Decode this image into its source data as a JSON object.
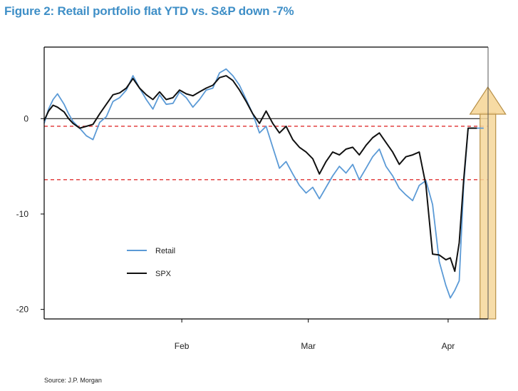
{
  "figure": {
    "title": "Figure 2: Retail portfolio flat YTD vs. S&P down -7%",
    "title_color": "#3f8fc7",
    "source": "Source: J.P. Morgan"
  },
  "chart_data": {
    "type": "line",
    "title": "Figure 2: Retail portfolio flat YTD vs. S&P down -7%",
    "xlabel": "",
    "ylabel": "",
    "xlim": [
      0,
      100
    ],
    "ylim": [
      -21,
      7.5
    ],
    "x_ticks": [
      {
        "x": 31.0,
        "label": "Feb"
      },
      {
        "x": 59.5,
        "label": "Mar"
      },
      {
        "x": 91.0,
        "label": "Apr"
      }
    ],
    "y_ticks": [
      {
        "y": 0,
        "label": "0"
      },
      {
        "y": -10,
        "label": "-10"
      },
      {
        "y": -20,
        "label": "-20"
      }
    ],
    "zero_line": 0,
    "reference_lines": [
      {
        "y": -0.8,
        "color": "#e03030",
        "style": "dashed"
      },
      {
        "y": -6.4,
        "color": "#e03030",
        "style": "dashed"
      }
    ],
    "highlight": {
      "x_start": 98.3,
      "x_end": 100,
      "description": "upward arrow",
      "color": "#f6d79a",
      "border": "#b89048"
    },
    "legend": {
      "placement": "bottom-left",
      "entries": [
        "Retail",
        "SPX"
      ]
    },
    "series": [
      {
        "name": "Retail",
        "color": "#5b9ad6",
        "x": [
          0,
          1,
          2,
          3,
          4.5,
          5.5,
          6.5,
          8,
          9.5,
          11,
          12.5,
          14,
          15.5,
          17,
          18.5,
          20,
          21.5,
          23,
          24.5,
          26,
          27.5,
          29,
          30.5,
          32,
          33.5,
          35,
          36.5,
          38,
          39.5,
          41,
          42.5,
          44,
          45.5,
          47,
          48.5,
          50,
          51.5,
          53,
          54.5,
          56,
          57.5,
          59,
          60.5,
          62,
          63.5,
          65,
          66.5,
          68,
          69.5,
          71,
          72.5,
          74,
          75.5,
          77,
          78.5,
          80,
          81.5,
          83,
          84.5,
          86,
          87.5,
          89,
          90.5,
          91.5,
          92.5,
          93.5,
          94.5,
          95.5,
          96.5,
          97.5,
          98,
          98.5,
          99
        ],
        "values": [
          -0.5,
          1.0,
          2.0,
          2.6,
          1.5,
          0.5,
          -0.3,
          -1.0,
          -1.8,
          -2.2,
          -0.4,
          0.2,
          1.8,
          2.2,
          3.0,
          4.5,
          3.2,
          2.0,
          1.0,
          2.5,
          1.5,
          1.6,
          2.8,
          2.2,
          1.2,
          2.0,
          3.0,
          3.2,
          4.8,
          5.2,
          4.5,
          3.5,
          2.0,
          0.5,
          -1.5,
          -0.8,
          -3.0,
          -5.2,
          -4.5,
          -5.8,
          -7.0,
          -7.8,
          -7.2,
          -8.4,
          -7.2,
          -6.0,
          -5.0,
          -5.7,
          -4.8,
          -6.4,
          -5.2,
          -4.0,
          -3.2,
          -5.0,
          -6.0,
          -7.3,
          -8.0,
          -8.6,
          -7.0,
          -6.5,
          -9.0,
          -15.0,
          -17.5,
          -18.8,
          -18.0,
          -17.0,
          -7.0,
          -1.0,
          -1.0,
          -1.0,
          -1.0,
          -1.0,
          -1.0
        ]
      },
      {
        "name": "SPX",
        "color": "#111111",
        "x": [
          0,
          1,
          2,
          3,
          4.5,
          5.5,
          6.5,
          8,
          9.5,
          11,
          12.5,
          14,
          15.5,
          17,
          18.5,
          20,
          21.5,
          23,
          24.5,
          26,
          27.5,
          29,
          30.5,
          32,
          33.5,
          35,
          36.5,
          38,
          39.5,
          41,
          42.5,
          44,
          45.5,
          47,
          48.5,
          50,
          51.5,
          53,
          54.5,
          56,
          57.5,
          59,
          60.5,
          62,
          63.5,
          65,
          66.5,
          68,
          69.5,
          71,
          72.5,
          74,
          75.5,
          77,
          78.5,
          80,
          81.5,
          83,
          84.5,
          86,
          87.5,
          89,
          90.5,
          91.5,
          92.5,
          93.5,
          94.5,
          95.5,
          96.5,
          97.5
        ],
        "values": [
          -0.2,
          0.8,
          1.4,
          1.2,
          0.7,
          0.0,
          -0.5,
          -1.0,
          -0.8,
          -0.6,
          0.5,
          1.5,
          2.5,
          2.7,
          3.2,
          4.2,
          3.2,
          2.5,
          2.0,
          2.8,
          2.0,
          2.2,
          3.0,
          2.6,
          2.4,
          2.8,
          3.2,
          3.5,
          4.3,
          4.5,
          4.0,
          3.0,
          1.8,
          0.5,
          -0.5,
          0.8,
          -0.5,
          -1.5,
          -0.8,
          -2.2,
          -3.0,
          -3.5,
          -4.2,
          -5.8,
          -4.5,
          -3.5,
          -3.8,
          -3.2,
          -3.0,
          -3.8,
          -2.8,
          -2.0,
          -1.5,
          -2.5,
          -3.5,
          -4.8,
          -4.0,
          -3.8,
          -3.5,
          -7.0,
          -14.2,
          -14.3,
          -14.8,
          -14.6,
          -16.0,
          -13.0,
          -6.5,
          -1.0,
          -1.0,
          -1.0
        ]
      }
    ]
  }
}
